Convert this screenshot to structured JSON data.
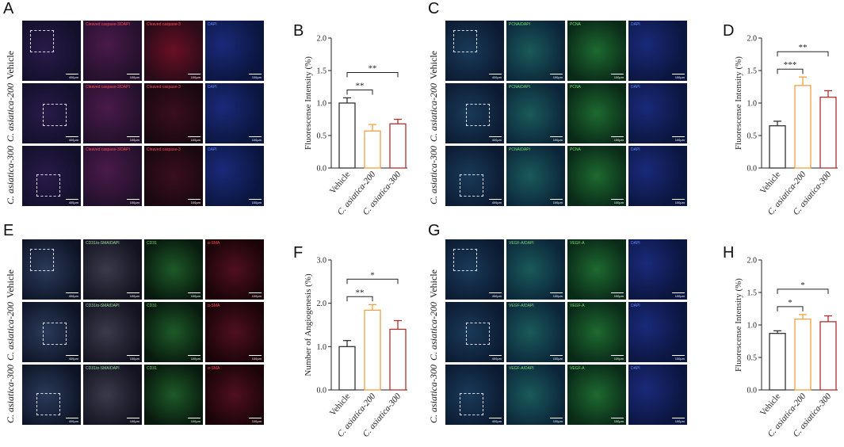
{
  "panel_letters": [
    "A",
    "B",
    "C",
    "D",
    "E",
    "F",
    "G",
    "H"
  ],
  "row_labels": {
    "vehicle": "Vehicle",
    "ca200_prefix": "C. asiatica",
    "ca200_suffix": "-200",
    "ca300_prefix": "C. asiatica",
    "ca300_suffix": "-300"
  },
  "colors": {
    "vehicle": "#333333",
    "ca200": "#f0a040",
    "ca300": "#b03030",
    "red_bg": "#2a0b18",
    "green_bg": "#0a2a18",
    "blue_bg": "#0b1640"
  },
  "image_captions": {
    "A": {
      "merge": "Cleaved caspase-3/DAPI",
      "channel": "Cleaved caspase-3",
      "dapi": "DAPI"
    },
    "C": {
      "merge": "PCNA/DAPI",
      "channel": "PCNA",
      "dapi": "DAPI"
    },
    "E": {
      "merge": "CD31/α-SMA/DAPI",
      "channel": "CD31",
      "dapi": "α-SMA"
    },
    "G": {
      "merge": "VEGF-A/DAPI",
      "channel": "VEGF-A",
      "dapi": "DAPI"
    },
    "scale_overview": "400μm",
    "scale_zoom": "100μm"
  },
  "chart_data": [
    {
      "panel": "B",
      "type": "bar",
      "categories": [
        "Vehicle",
        "C. asiatica-200",
        "C. asiatica-300"
      ],
      "values": [
        1.0,
        0.57,
        0.68
      ],
      "errors": [
        0.08,
        0.1,
        0.07
      ],
      "ylabel": "Fluorescense Intensity (%)",
      "ylim": [
        0.0,
        2.0
      ],
      "yticks": [
        "0.0",
        "0.5",
        "1.0",
        "1.5",
        "2.0"
      ],
      "significance": [
        {
          "from": 0,
          "to": 1,
          "label": "**"
        },
        {
          "from": 0,
          "to": 2,
          "label": "**"
        }
      ]
    },
    {
      "panel": "D",
      "type": "bar",
      "categories": [
        "Vehicle",
        "C. asiatica-200",
        "C. asiatica-300"
      ],
      "values": [
        0.65,
        1.27,
        1.09
      ],
      "errors": [
        0.07,
        0.13,
        0.1
      ],
      "ylabel": "Fluorescense Intensity (%)",
      "ylim": [
        0.0,
        2.0
      ],
      "yticks": [
        "0.0",
        "0.5",
        "1.0",
        "1.5",
        "2.0"
      ],
      "significance": [
        {
          "from": 0,
          "to": 1,
          "label": "***"
        },
        {
          "from": 0,
          "to": 2,
          "label": "**"
        }
      ]
    },
    {
      "panel": "F",
      "type": "bar",
      "categories": [
        "Vehicle",
        "C. asiatica-200",
        "C. asiatica-300"
      ],
      "values": [
        1.0,
        1.84,
        1.4
      ],
      "errors": [
        0.14,
        0.13,
        0.2
      ],
      "ylabel": "Number of Angiogenesis (%)",
      "ylim": [
        0.0,
        3.0
      ],
      "yticks": [
        "0.0",
        "1.0",
        "2.0",
        "3.0"
      ],
      "significance": [
        {
          "from": 0,
          "to": 1,
          "label": "**"
        },
        {
          "from": 0,
          "to": 2,
          "label": "*"
        }
      ]
    },
    {
      "panel": "H",
      "type": "bar",
      "categories": [
        "Vehicle",
        "C. asiatica-200",
        "C. asiatica-300"
      ],
      "values": [
        0.87,
        1.09,
        1.05
      ],
      "errors": [
        0.04,
        0.07,
        0.09
      ],
      "ylabel": "Fluorescense Intensity (%)",
      "ylim": [
        0.0,
        2.0
      ],
      "yticks": [
        "0.0",
        "0.5",
        "1.0",
        "1.5",
        "2.0"
      ],
      "significance": [
        {
          "from": 0,
          "to": 1,
          "label": "*"
        },
        {
          "from": 0,
          "to": 2,
          "label": "*"
        }
      ]
    }
  ]
}
